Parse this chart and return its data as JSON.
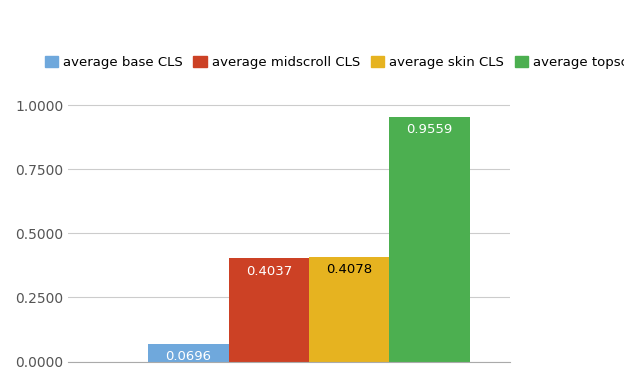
{
  "categories": [
    "average base CLS",
    "average midscroll CLS",
    "average skin CLS",
    "average topscroll"
  ],
  "values": [
    0.0696,
    0.4037,
    0.4078,
    0.9559
  ],
  "bar_colors": [
    "#6fa8dc",
    "#cc4125",
    "#e6b320",
    "#4caf50"
  ],
  "legend_colors": [
    "#6fa8dc",
    "#cc4125",
    "#e6b320",
    "#4caf50"
  ],
  "bar_positions": [
    1.5,
    2.5,
    3.5,
    4.5
  ],
  "value_labels": [
    "0.0696",
    "0.4037",
    "0.4078",
    "0.9559"
  ],
  "label_text_colors": [
    "#ffffff",
    "#ffffff",
    "#000000",
    "#ffffff"
  ],
  "ylim": [
    0,
    1.05
  ],
  "yticks": [
    0.0,
    0.25,
    0.5,
    0.75,
    1.0
  ],
  "ytick_labels": [
    "0.0000",
    "0.2500",
    "0.5000",
    "0.7500",
    "1.0000"
  ],
  "background_color": "#ffffff",
  "grid_color": "#cccccc",
  "bar_width": 1.0,
  "xlim": [
    0.0,
    5.5
  ],
  "figsize": [
    6.24,
    3.85
  ],
  "dpi": 100,
  "label_fontsize": 9.5,
  "tick_fontsize": 10,
  "legend_fontsize": 9.5
}
